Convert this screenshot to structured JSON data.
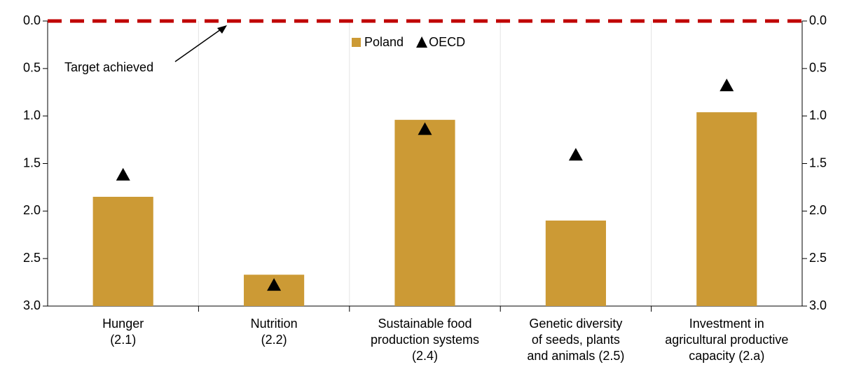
{
  "chart_data": {
    "type": "bar",
    "categories": [
      [
        "Hunger",
        "(2.1)"
      ],
      [
        "Nutrition",
        "(2.2)"
      ],
      [
        "Sustainable food",
        "production systems",
        "(2.4)"
      ],
      [
        "Genetic diversity",
        "of seeds, plants",
        "and animals (2.5)"
      ],
      [
        "Investment in",
        "agricultural productive",
        "capacity (2.a)"
      ]
    ],
    "series": [
      {
        "name": "Poland",
        "color": "#cc9a35",
        "values": [
          1.85,
          2.67,
          1.04,
          2.1,
          0.96
        ]
      },
      {
        "name": "OECD",
        "color": "#000000",
        "marker": "triangle",
        "values": [
          1.62,
          2.78,
          1.14,
          1.41,
          0.68
        ]
      }
    ],
    "ylim": [
      0,
      3
    ],
    "inverted": true,
    "yticks": [
      {
        "value": 0,
        "label": "0.0"
      },
      {
        "value": 0.5,
        "label": "0.5"
      },
      {
        "value": 1,
        "label": "1.0"
      },
      {
        "value": 1.5,
        "label": "1.5"
      },
      {
        "value": 2,
        "label": "2.0"
      },
      {
        "value": 2.5,
        "label": "2.5"
      },
      {
        "value": 3,
        "label": "3.0"
      }
    ],
    "y2lim": [
      0,
      3
    ],
    "y2ticks": [
      {
        "value": 0,
        "label": "0.0"
      },
      {
        "value": 0.5,
        "label": "0.5"
      },
      {
        "value": 1,
        "label": "1.0"
      },
      {
        "value": 1.5,
        "label": "1.5"
      },
      {
        "value": 2,
        "label": "2.0"
      },
      {
        "value": 2.5,
        "label": "2.5"
      },
      {
        "value": 3,
        "label": "3.0"
      }
    ],
    "target_line": {
      "value": 0,
      "label": "Target achieved",
      "color": "#c00000"
    },
    "legend": "top"
  }
}
